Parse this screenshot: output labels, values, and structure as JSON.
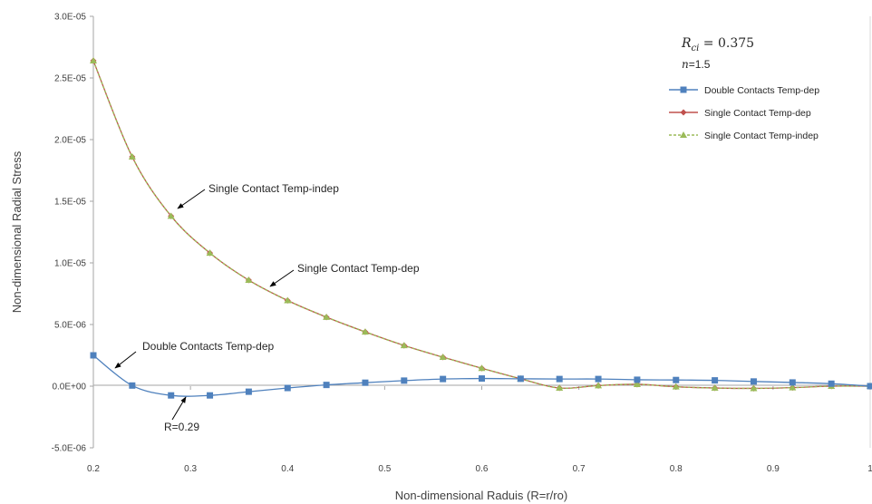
{
  "chart_data": {
    "type": "line",
    "xlabel": "Non-dimensional Raduis (R=r/ro)",
    "ylabel": "Non-dimensional Radial Stress",
    "xlim": [
      0.2,
      1.0
    ],
    "ylim": [
      -5e-06,
      3e-05
    ],
    "x_ticks": [
      "0.2",
      "0.3",
      "0.4",
      "0.5",
      "0.6",
      "0.7",
      "0.8",
      "0.9",
      "1"
    ],
    "y_ticks": [
      "3.0E-05",
      "2.5E-05",
      "2.0E-05",
      "1.5E-05",
      "1.0E-05",
      "5.0E-06",
      "0.0E+00",
      "-5.0E-06"
    ],
    "x": [
      0.2,
      0.24,
      0.28,
      0.32,
      0.36,
      0.4,
      0.44,
      0.48,
      0.52,
      0.56,
      0.6,
      0.64,
      0.68,
      0.72,
      0.76,
      0.8,
      0.84,
      0.88,
      0.92,
      0.96,
      1.0
    ],
    "series": [
      {
        "name": "Double Contacts Temp-dep",
        "color": "#4f81bd",
        "marker": "square",
        "values": [
          2.5e-06,
          5e-08,
          -7.5e-07,
          -7.5e-07,
          -4.5e-07,
          -1.5e-07,
          1e-07,
          2.8e-07,
          4.5e-07,
          5.8e-07,
          6.2e-07,
          6e-07,
          5.8e-07,
          5.8e-07,
          5.2e-07,
          5e-07,
          4.7e-07,
          3.8e-07,
          3e-07,
          2e-07,
          0.0
        ]
      },
      {
        "name": "Single Contact Temp-dep",
        "color": "#c0504d",
        "marker": "diamond",
        "values": [
          2.64e-05,
          1.86e-05,
          1.38e-05,
          1.08e-05,
          8.6e-06,
          6.95e-06,
          5.6e-06,
          4.4e-06,
          3.3e-06,
          2.35e-06,
          1.45e-06,
          6e-07,
          -1.5e-07,
          5e-08,
          1.5e-07,
          -5e-08,
          -1.5e-07,
          -1.8e-07,
          -1.2e-07,
          0.0,
          0.0
        ]
      },
      {
        "name": "Single Contact Temp-indep",
        "color": "#9bbb59",
        "marker": "triangle",
        "values": [
          2.64e-05,
          1.86e-05,
          1.38e-05,
          1.08e-05,
          8.6e-06,
          6.95e-06,
          5.6e-06,
          4.4e-06,
          3.3e-06,
          2.35e-06,
          1.45e-06,
          6e-07,
          -1.5e-07,
          5e-08,
          1.5e-07,
          -5e-08,
          -1.5e-07,
          -1.8e-07,
          -1.2e-07,
          0.0,
          0.0
        ]
      }
    ],
    "annotations": [
      {
        "text": "Single Contact Temp-indep",
        "x": 0.28,
        "y": 1.38e-05
      },
      {
        "text": "Single Contact Temp-dep",
        "x": 0.38,
        "y": 7.7e-06
      },
      {
        "text": "Double Contacts Temp-dep",
        "x": 0.22,
        "y": 1.5e-06
      },
      {
        "text": "R=0.29",
        "x": 0.29,
        "y": -8e-07
      }
    ],
    "params": {
      "rci_label": "R",
      "rci_sub": "ci",
      "rci_value": " = 0.375",
      "n_label": "n",
      "n_value": "=1.5"
    },
    "legend_position": "top-right",
    "grid": false
  }
}
